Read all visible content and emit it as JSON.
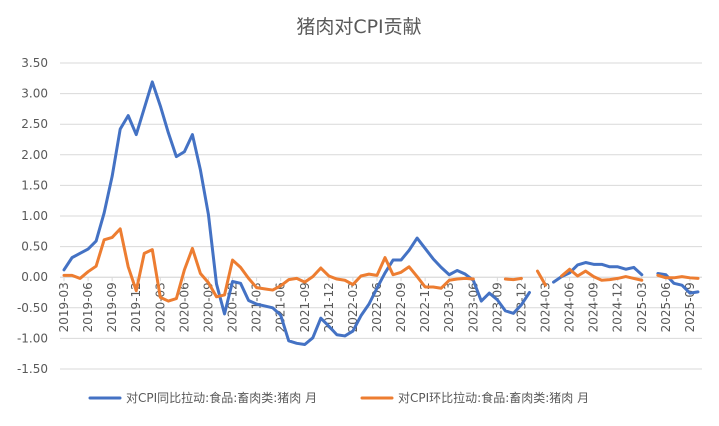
{
  "chart_data": {
    "type": "line",
    "title": "猪肉对CPI贡献",
    "xlabel": "",
    "ylabel": "",
    "ylim": [
      -1.5,
      3.5
    ],
    "y_ticks": [
      "3.50",
      "3.00",
      "2.50",
      "2.00",
      "1.50",
      "1.00",
      "0.50",
      "0.00",
      "-0.50",
      "-1.00",
      "-1.50"
    ],
    "y_tick_values": [
      3.5,
      3.0,
      2.5,
      2.0,
      1.5,
      1.0,
      0.5,
      0.0,
      -0.5,
      -1.0,
      -1.5
    ],
    "x": [
      "2019-03",
      "2019-04",
      "2019-05",
      "2019-06",
      "2019-07",
      "2019-08",
      "2019-09",
      "2019-10",
      "2019-11",
      "2019-12",
      "2020-01",
      "2020-02",
      "2020-03",
      "2020-04",
      "2020-05",
      "2020-06",
      "2020-07",
      "2020-08",
      "2020-09",
      "2020-10",
      "2020-11",
      "2020-12",
      "2021-01",
      "2021-02",
      "2021-03",
      "2021-04",
      "2021-05",
      "2021-06",
      "2021-07",
      "2021-08",
      "2021-09",
      "2021-10",
      "2021-11",
      "2021-12",
      "2022-01",
      "2022-02",
      "2022-03",
      "2022-04",
      "2022-05",
      "2022-06",
      "2022-07",
      "2022-08",
      "2022-09",
      "2022-10",
      "2022-11",
      "2022-12",
      "2023-01",
      "2023-02",
      "2023-03",
      "2023-04",
      "2023-05",
      "2023-06",
      "2023-07",
      "2023-08",
      "2023-09",
      "2023-10",
      "2023-11",
      "2023-12",
      "2024-01",
      "2024-02",
      "2024-03",
      "2024-04",
      "2024-05",
      "2024-06",
      "2024-07",
      "2024-08",
      "2024-09",
      "2024-10",
      "2024-11",
      "2024-12",
      "2025-01",
      "2025-02",
      "2025-03",
      "2025-04",
      "2025-05",
      "2025-06",
      "2025-07",
      "2025-08",
      "2025-09",
      "2025-10"
    ],
    "x_tick_labels": [
      "2019-03",
      "2019-06",
      "2019-09",
      "2019-12",
      "2020-03",
      "2020-06",
      "2020-09",
      "2020-12",
      "2021-03",
      "2021-06",
      "2021-09",
      "2021-12",
      "2022-03",
      "2022-06",
      "2022-09",
      "2022-12",
      "2023-03",
      "2023-06",
      "2023-09",
      "2023-12",
      "2024-03",
      "2024-06",
      "2024-09",
      "2024-12",
      "2025-03",
      "2025-06",
      "2025-09"
    ],
    "legend_position": "bottom",
    "grid": true,
    "series": [
      {
        "name": "对CPI同比拉动:食品:畜肉类:猪肉 月",
        "color": "#4472C4",
        "values": [
          0.12,
          0.32,
          0.39,
          0.46,
          0.59,
          1.05,
          1.65,
          2.42,
          2.64,
          2.33,
          2.76,
          3.19,
          2.8,
          2.36,
          1.97,
          2.05,
          2.33,
          1.75,
          1.02,
          -0.11,
          -0.6,
          -0.07,
          -0.1,
          -0.38,
          -0.44,
          -0.47,
          -0.5,
          -0.62,
          -1.04,
          -1.08,
          -1.1,
          -0.99,
          -0.67,
          -0.8,
          -0.94,
          -0.96,
          -0.88,
          -0.63,
          -0.44,
          -0.18,
          0.07,
          0.28,
          0.28,
          0.44,
          0.64,
          0.47,
          0.3,
          0.16,
          0.04,
          0.11,
          0.05,
          -0.05,
          -0.39,
          -0.26,
          -0.37,
          -0.55,
          -0.59,
          -0.45,
          -0.25,
          null,
          null,
          -0.08,
          0.01,
          0.07,
          0.2,
          0.24,
          0.21,
          0.21,
          0.17,
          0.17,
          0.13,
          0.16,
          0.04,
          null,
          0.06,
          0.04,
          -0.1,
          -0.13,
          -0.26,
          -0.24
        ]
      },
      {
        "name": "对CPI环比拉动:食品:畜肉类:猪肉 月",
        "color": "#ED7D31",
        "values": [
          0.03,
          0.03,
          -0.02,
          0.09,
          0.18,
          0.61,
          0.65,
          0.79,
          0.17,
          -0.22,
          0.39,
          0.45,
          -0.33,
          -0.39,
          -0.35,
          0.12,
          0.47,
          0.06,
          -0.09,
          -0.32,
          -0.29,
          0.28,
          0.16,
          -0.02,
          -0.17,
          -0.19,
          -0.21,
          -0.14,
          -0.04,
          -0.02,
          -0.08,
          0.01,
          0.15,
          0.02,
          -0.03,
          -0.05,
          -0.12,
          0.02,
          0.05,
          0.03,
          0.32,
          0.04,
          0.08,
          0.17,
          0.01,
          -0.16,
          -0.16,
          -0.18,
          -0.05,
          -0.03,
          -0.02,
          -0.03,
          null,
          null,
          null,
          -0.03,
          -0.04,
          -0.02,
          null,
          0.1,
          -0.13,
          null,
          0.02,
          0.13,
          0.02,
          0.1,
          0.01,
          -0.05,
          -0.04,
          -0.02,
          0.01,
          -0.02,
          -0.05,
          null,
          0.03,
          -0.01,
          -0.01,
          0.01,
          -0.01,
          -0.02
        ]
      }
    ]
  }
}
